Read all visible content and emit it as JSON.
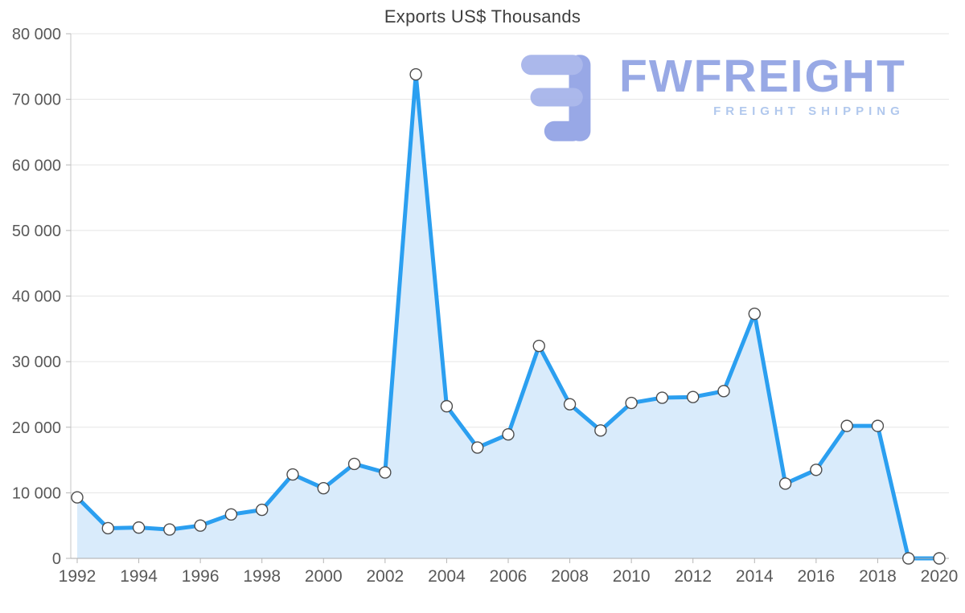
{
  "chart_data": {
    "type": "area",
    "title": "Exports US$ Thousands",
    "xlabel": "",
    "ylabel": "",
    "x": [
      1992,
      1993,
      1994,
      1995,
      1996,
      1997,
      1998,
      1999,
      2000,
      2001,
      2002,
      2003,
      2004,
      2005,
      2006,
      2007,
      2008,
      2009,
      2010,
      2011,
      2012,
      2013,
      2014,
      2015,
      2016,
      2017,
      2018,
      2019,
      2020
    ],
    "values": [
      9300,
      4600,
      4700,
      4400,
      5000,
      6700,
      7400,
      12800,
      10700,
      14400,
      13100,
      73800,
      23200,
      16900,
      18900,
      32400,
      23500,
      19500,
      23700,
      24500,
      24600,
      25500,
      37300,
      11400,
      13500,
      20200,
      20200,
      0,
      0
    ],
    "ylim": [
      0,
      80000
    ],
    "y_ticks": [
      0,
      10000,
      20000,
      30000,
      40000,
      50000,
      60000,
      70000,
      80000
    ],
    "y_tick_labels": [
      "0",
      "10 000",
      "20 000",
      "30 000",
      "40 000",
      "50 000",
      "60 000",
      "70 000",
      "80 000"
    ],
    "x_tick_labels": [
      "1992",
      "1994",
      "1996",
      "1998",
      "2000",
      "2002",
      "2004",
      "2006",
      "2008",
      "2010",
      "2012",
      "2014",
      "2016",
      "2018",
      "2020"
    ],
    "grid": "horizontal",
    "legend": "none",
    "line_color": "#2b9ff0",
    "fill_color": "#d9ebfb",
    "marker_fill": "#ffffff",
    "marker_stroke": "#4d4d4d",
    "grid_color": "#e5e5e5",
    "axis_color": "#b5b5b5",
    "tick_text_color": "#595959"
  },
  "watermark": {
    "name": "FWFREIGHT",
    "subtitle": "FREIGHT SHIPPING",
    "icon_color_dark": "#8d9fe4",
    "icon_color_light": "#a3b1e9"
  }
}
